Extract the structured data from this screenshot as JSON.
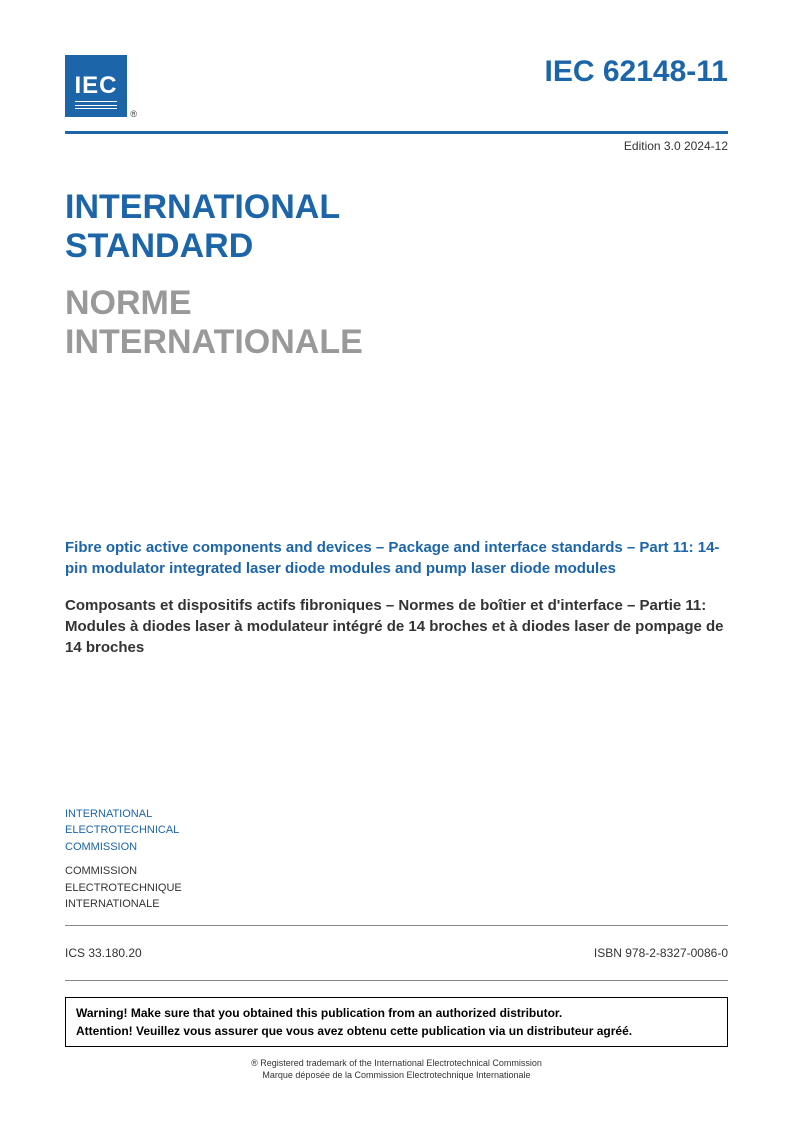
{
  "logo": {
    "text": "IEC",
    "registered": "®"
  },
  "header": {
    "doc_number": "IEC 62148-11",
    "edition": "Edition 3.0   2024-12"
  },
  "titles": {
    "en_line1": "INTERNATIONAL",
    "en_line2": "STANDARD",
    "fr_line1": "NORME",
    "fr_line2": "INTERNATIONALE"
  },
  "subtitles": {
    "en": "Fibre optic active components and devices – Package and interface standards – Part 11: 14-pin modulator integrated laser diode modules and pump laser diode modules",
    "fr": "Composants et dispositifs actifs fibroniques – Normes de boîtier et d'interface – Partie 11: Modules à diodes laser à modulateur intégré de 14 broches et à diodes laser de pompage de 14 broches"
  },
  "org": {
    "en_line1": "INTERNATIONAL",
    "en_line2": "ELECTROTECHNICAL",
    "en_line3": "COMMISSION",
    "fr_line1": "COMMISSION",
    "fr_line2": "ELECTROTECHNIQUE",
    "fr_line3": "INTERNATIONALE"
  },
  "meta": {
    "ics": "ICS 33.180.20",
    "isbn": "ISBN 978-2-8327-0086-0"
  },
  "warning": {
    "en": "Warning! Make sure that you obtained this publication from an authorized distributor.",
    "fr": "Attention! Veuillez vous assurer que vous avez obtenu cette publication via un distributeur agréé."
  },
  "trademark": {
    "en": "® Registered trademark of the International Electrotechnical Commission",
    "fr": "Marque déposée de la Commission Electrotechnique Internationale"
  },
  "colors": {
    "primary_blue": "#1c65a8",
    "gray_text": "#999999"
  }
}
